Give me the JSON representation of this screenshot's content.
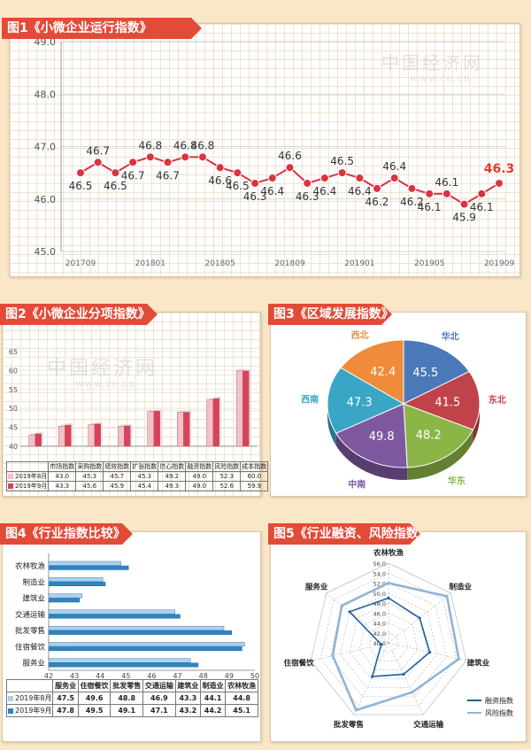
{
  "chart_data": [
    {
      "type": "line",
      "title": "图1《小微企业运行指数》",
      "watermark": "中国经济网",
      "watermark_url": "www.ce.cn",
      "x_tick_labels": [
        "201709",
        "201801",
        "201805",
        "201809",
        "201901",
        "201905",
        "201909"
      ],
      "y_tick_labels": [
        "45.0",
        "46.0",
        "47.0",
        "48.0",
        "49.0"
      ],
      "ylim": [
        45.0,
        49.0
      ],
      "x": [
        "201709",
        "201710",
        "201711",
        "201712",
        "201801",
        "201802",
        "201803",
        "201804",
        "201805",
        "201806",
        "201807",
        "201808",
        "201809",
        "201810",
        "201811",
        "201812",
        "201901",
        "201902",
        "201903",
        "201904",
        "201905",
        "201906",
        "201907",
        "201908",
        "201909"
      ],
      "values": [
        46.5,
        46.7,
        46.5,
        46.7,
        46.8,
        46.7,
        46.8,
        46.8,
        46.6,
        46.5,
        46.3,
        46.4,
        46.6,
        46.3,
        46.4,
        46.5,
        46.4,
        46.2,
        46.4,
        46.2,
        46.1,
        46.1,
        45.9,
        46.1,
        46.3
      ],
      "labels": [
        "46.5",
        "46.7",
        "46.5",
        "46.7",
        "46.8",
        "46.7",
        "46.8",
        "46.8",
        "46.6",
        "46.5",
        "46.3",
        "46.4",
        "46.6",
        "46.3",
        "46.4",
        "46.5",
        "46.4",
        "46.2",
        "46.4",
        "46.2",
        "46.1",
        "46.1",
        "45.9",
        "46.1",
        "46.3"
      ],
      "color": "#d9343f",
      "grid": true
    },
    {
      "type": "bar",
      "title": "图2《小微企业分项指数》",
      "watermark": "中国经济网",
      "watermark_url": "www.ce.cn",
      "categories": [
        "市场指数",
        "采购指数",
        "绩效指数",
        "扩张指数",
        "信心指数",
        "融资指数",
        "风险指数",
        "成本指数"
      ],
      "y_tick_labels": [
        "40",
        "45",
        "50",
        "55",
        "60",
        "65"
      ],
      "ylim": [
        40,
        65
      ],
      "corner_label": "",
      "series": [
        {
          "name": "2019年8月",
          "values": [
            "43.0",
            "45.3",
            "45.7",
            "45.3",
            "49.2",
            "49.0",
            "52.3",
            "60.0"
          ],
          "color": "#f3c1c6"
        },
        {
          "name": "2019年9月",
          "values": [
            "43.3",
            "45.6",
            "45.9",
            "45.4",
            "49.3",
            "49.0",
            "52.6",
            "59.9"
          ],
          "color": "#d9425a"
        }
      ]
    },
    {
      "type": "pie",
      "title": "图3《区域发展指数》",
      "slices": [
        {
          "label": "华北",
          "value": "45.5",
          "color": "#4a78b8"
        },
        {
          "label": "东北",
          "value": "41.5",
          "color": "#c1434a"
        },
        {
          "label": "华东",
          "value": "48.2",
          "color": "#8cb548"
        },
        {
          "label": "中南",
          "value": "49.8",
          "color": "#7e59a0"
        },
        {
          "label": "西南",
          "value": "47.3",
          "color": "#39a6c6"
        },
        {
          "label": "西北",
          "value": "42.4",
          "color": "#ef8b3a"
        }
      ]
    },
    {
      "type": "bar",
      "orientation": "horizontal",
      "title": "图4《行业指数比较》",
      "categories": [
        "农林牧渔",
        "制造业",
        "建筑业",
        "交通运输",
        "批发零售",
        "住宿餐饮",
        "服务业"
      ],
      "x_tick_labels": [
        "42",
        "43",
        "44",
        "45",
        "46",
        "47",
        "48",
        "49",
        "50"
      ],
      "xlim": [
        42,
        50
      ],
      "table_columns": [
        "服务业",
        "住宿餐饮",
        "批发零售",
        "交通运输",
        "建筑业",
        "制造业",
        "农林牧渔"
      ],
      "series": [
        {
          "name": "2019年8月",
          "values": [
            "44.8",
            "44.1",
            "43.3",
            "46.9",
            "48.8",
            "49.6",
            "47.5"
          ],
          "table_values": [
            "47.5",
            "49.6",
            "48.8",
            "46.9",
            "43.3",
            "44.1",
            "44.8"
          ],
          "color": "#a9d3ee"
        },
        {
          "name": "2019年9月",
          "values": [
            "45.1",
            "44.2",
            "43.2",
            "47.1",
            "49.1",
            "49.5",
            "47.8"
          ],
          "table_values": [
            "47.8",
            "49.5",
            "49.1",
            "47.1",
            "43.2",
            "44.2",
            "45.1"
          ],
          "color": "#2f84c2"
        }
      ]
    },
    {
      "type": "radar",
      "title": "图5《行业融资、风险指数》",
      "axes": [
        "农林牧渔",
        "制造业",
        "建筑业",
        "交通运输",
        "批发零售",
        "住宿餐饮",
        "服务业"
      ],
      "r_tick_labels": [
        "40.0",
        "42.0",
        "44.0",
        "46.0",
        "48.0",
        "50.0",
        "52.0",
        "54.0",
        "56.0"
      ],
      "rlim": [
        40,
        56
      ],
      "series": [
        {
          "name": "融资指数",
          "values": [
            49.0,
            48.0,
            48.5,
            47.0,
            47.5,
            41.5,
            50.0
          ],
          "color": "#1f5f9e"
        },
        {
          "name": "风险指数",
          "values": [
            52.0,
            55.0,
            54.5,
            51.0,
            55.0,
            51.5,
            52.0
          ],
          "color": "#8fb4d8"
        }
      ]
    }
  ]
}
